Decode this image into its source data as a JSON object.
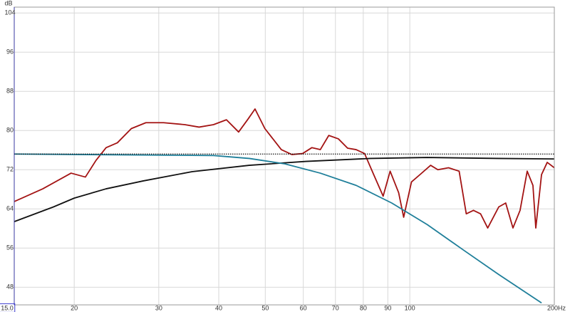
{
  "chart_data": {
    "type": "line",
    "y_label": "dB",
    "log_x": true,
    "grid": true,
    "xlim": [
      15,
      200
    ],
    "ylim": [
      44.4,
      105.2
    ],
    "xticks": [
      {
        "value": 15,
        "label": "15.0"
      },
      20,
      30,
      40,
      50,
      60,
      70,
      80,
      90,
      100,
      {
        "value": 200,
        "label": "200Hz"
      }
    ],
    "yticks": [
      48,
      56,
      64,
      72,
      80,
      88,
      96,
      104
    ],
    "series": [
      {
        "color": "#a31313",
        "style": "solid",
        "x": [
          15.0,
          17.2,
          19.7,
          21.1,
          22.2,
          23.3,
          24.6,
          26.3,
          28.2,
          30.7,
          34.0,
          36.4,
          39.0,
          41.5,
          44.0,
          46.0,
          47.6,
          49.9,
          54.0,
          56.8,
          59.8,
          62.5,
          65.1,
          67.8,
          71.0,
          74.2,
          77.3,
          80.5,
          84.1,
          88.0,
          91.0,
          94.8,
          97.1,
          100.8,
          105.0,
          110.5,
          114.4,
          120.4,
          126.7,
          131.1,
          135.7,
          140.4,
          145.3,
          153.2,
          158.4,
          164.0,
          169.7,
          175.6,
          180.5,
          183.0,
          188.1,
          193.3,
          200.0
        ],
        "values": [
          65.5,
          68.1,
          71.3,
          70.5,
          73.9,
          76.5,
          77.5,
          80.4,
          81.6,
          81.6,
          81.2,
          80.7,
          81.2,
          82.2,
          79.7,
          82.3,
          84.4,
          80.4,
          76.1,
          75.1,
          75.3,
          76.5,
          76.1,
          79.0,
          78.3,
          76.4,
          76.1,
          75.3,
          71.0,
          66.6,
          71.7,
          67.3,
          62.3,
          69.5,
          71.0,
          72.9,
          72.0,
          72.4,
          71.7,
          63.0,
          63.7,
          63.0,
          60.1,
          64.4,
          65.2,
          60.1,
          63.7,
          71.7,
          68.8,
          60.1,
          71.0,
          73.5,
          72.4
        ]
      },
      {
        "color": "#111111",
        "style": "solid",
        "x": [
          15.0,
          18.1,
          20.0,
          23.3,
          27.8,
          35.2,
          46.3,
          60.8,
          82.7,
          108.7,
          153.2,
          200.0
        ],
        "values": [
          61.4,
          64.4,
          66.2,
          68.1,
          69.7,
          71.6,
          72.9,
          73.7,
          74.3,
          74.5,
          74.3,
          74.2
        ]
      },
      {
        "color": "#1f7f9a",
        "style": "solid",
        "x": [
          15.0,
          39.0,
          46.3,
          54.9,
          65.1,
          77.3,
          91.7,
          108.7,
          128.9,
          153.2,
          188.1
        ],
        "values": [
          75.2,
          74.9,
          74.3,
          73.2,
          71.3,
          68.8,
          65.2,
          60.8,
          55.7,
          50.6,
          44.8
        ]
      },
      {
        "color": "#111111",
        "style": "dotted",
        "x": [
          15.0,
          200.0
        ],
        "values": [
          75.2,
          75.2
        ]
      }
    ]
  }
}
